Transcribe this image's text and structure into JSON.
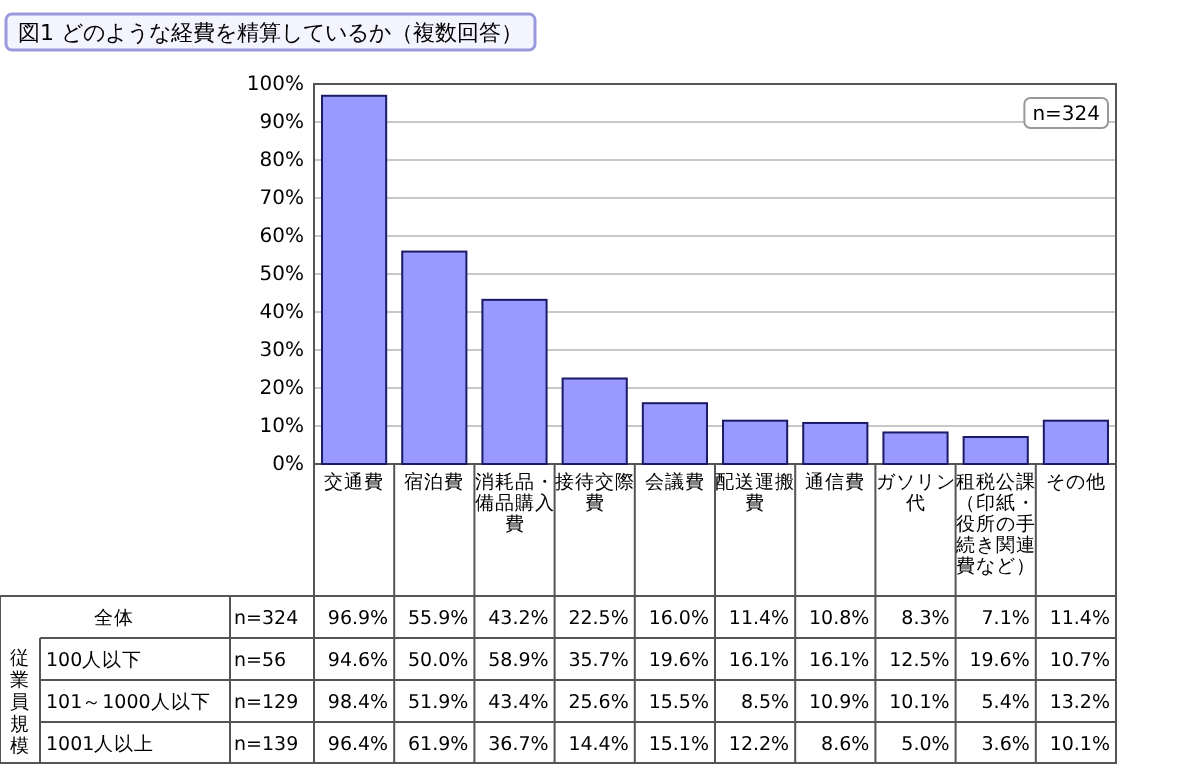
{
  "chart_data": {
    "type": "bar",
    "title": "図1 どのような経費を精算しているか（複数回答）",
    "categories": [
      "交通費",
      "宿泊費",
      "消耗品・備品購入費",
      "接待交際費",
      "会議費",
      "配送運搬費",
      "通信費",
      "ガソリン代",
      "租税公課（印紙・役所の手続き関連費など）",
      "その他"
    ],
    "values": [
      96.9,
      55.9,
      43.2,
      22.5,
      16.0,
      11.4,
      10.8,
      8.3,
      7.1,
      11.4
    ],
    "value_labels": [
      "96.9%",
      "55.9%",
      "43.2%",
      "22.5%",
      "16.0%",
      "11.4%",
      "10.8%",
      "8.3%",
      "7.1%",
      "11.4%"
    ],
    "color": "#9999ff",
    "ylim": [
      0,
      100
    ],
    "yticks": [
      {
        "value": 0,
        "label": "0%"
      },
      {
        "value": 10,
        "label": "10%"
      },
      {
        "value": 20,
        "label": "20%"
      },
      {
        "value": 30,
        "label": "30%"
      },
      {
        "value": 40,
        "label": "40%"
      },
      {
        "value": 50,
        "label": "50%"
      },
      {
        "value": 60,
        "label": "60%"
      },
      {
        "value": 70,
        "label": "70%"
      },
      {
        "value": 80,
        "label": "80%"
      },
      {
        "value": 90,
        "label": "90%"
      },
      {
        "value": 100,
        "label": "100%"
      }
    ],
    "grid": "y",
    "annotations": [
      "n=324",
      "全体",
      "n=324",
      "従業員規模",
      "100人以下",
      "n=56",
      "94.6%",
      "50.0%",
      "58.9%",
      "35.7%",
      "19.6%",
      "16.1%",
      "16.1%",
      "12.5%",
      "19.6%",
      "10.7%",
      "101～1000人以下",
      "n=129",
      "98.4%",
      "51.9%",
      "43.4%",
      "25.6%",
      "15.5%",
      "8.5%",
      "10.9%",
      "10.1%",
      "5.4%",
      "13.2%",
      "1001人以上",
      "n=139",
      "96.4%",
      "61.9%",
      "36.7%",
      "14.4%",
      "15.1%",
      "12.2%",
      "8.6%",
      "5.0%",
      "3.6%",
      "10.1%"
    ]
  }
}
